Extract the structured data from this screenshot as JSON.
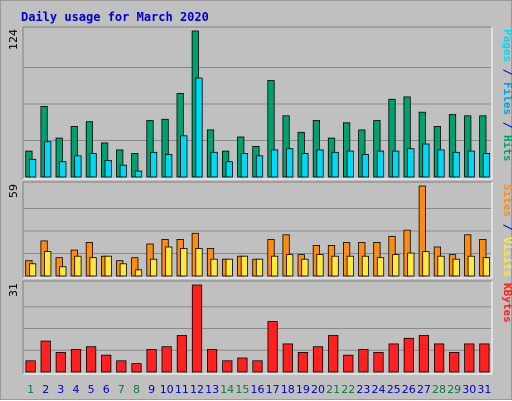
{
  "chart_data": {
    "type": "bar",
    "title": "Daily usage for March 2020",
    "categories": [
      "1",
      "2",
      "3",
      "4",
      "5",
      "6",
      "7",
      "8",
      "9",
      "10",
      "11",
      "12",
      "13",
      "14",
      "15",
      "16",
      "17",
      "18",
      "19",
      "20",
      "21",
      "22",
      "23",
      "24",
      "25",
      "26",
      "27",
      "28",
      "29",
      "30",
      "31"
    ],
    "weekend_days": [
      "1",
      "7",
      "8",
      "14",
      "15",
      "21",
      "22",
      "28",
      "29"
    ],
    "colors": {
      "weekday_label": "#0000cc",
      "weekend_label": "#0a7a3c",
      "hits": "#00a070",
      "files": "#00d8f8",
      "pages": "#00d8f8",
      "visits": "#ff8c10",
      "sites": "#ffe840",
      "kbytes": "#ff2020",
      "grid": "#8a8a8a"
    },
    "panels": [
      {
        "id": "hits",
        "ymax_label": "124",
        "ylim": [
          0,
          124
        ],
        "legend": [
          {
            "text": "Pages",
            "color": "#00d8f8"
          },
          {
            "text": " / ",
            "color": "#0000cc"
          },
          {
            "text": "Files",
            "color": "#00a0d8"
          },
          {
            "text": " / ",
            "color": "#0000cc"
          },
          {
            "text": "Hits",
            "color": "#00a070"
          }
        ],
        "series": [
          {
            "name": "Hits",
            "color": "#00a070",
            "values": [
              22,
              60,
              33,
              43,
              47,
              29,
              23,
              20,
              48,
              49,
              71,
              124,
              40,
              22,
              34,
              26,
              82,
              52,
              38,
              48,
              33,
              46,
              40,
              48,
              66,
              68,
              55,
              43,
              53,
              52,
              52
            ]
          },
          {
            "name": "Files",
            "color": "#00d8f8",
            "values": [
              15,
              30,
              13,
              18,
              20,
              14,
              10,
              5,
              21,
              19,
              35,
              84,
              21,
              13,
              20,
              18,
              23,
              24,
              20,
              23,
              21,
              22,
              19,
              22,
              22,
              24,
              28,
              23,
              21,
              22,
              20
            ]
          },
          {
            "name": "Pages",
            "color": "#00d8f8",
            "values": [
              0,
              0,
              0,
              0,
              0,
              0,
              0,
              0,
              0,
              0,
              0,
              0,
              0,
              0,
              0,
              0,
              0,
              0,
              0,
              0,
              0,
              0,
              0,
              0,
              0,
              0,
              0,
              0,
              0,
              0,
              0
            ]
          }
        ]
      },
      {
        "id": "visits",
        "ymax_label": "59",
        "ylim": [
          0,
          59
        ],
        "legend": [
          {
            "text": "Sites",
            "color": "#ff8c10"
          },
          {
            "text": " / ",
            "color": "#0000cc"
          },
          {
            "text": "Visits",
            "color": "#ffe840"
          }
        ],
        "series": [
          {
            "name": "Visits",
            "color": "#ff8c10",
            "values": [
              10,
              23,
              12,
              17,
              22,
              13,
              10,
              12,
              21,
              24,
              24,
              28,
              18,
              11,
              13,
              11,
              24,
              27,
              14,
              20,
              20,
              22,
              22,
              22,
              26,
              30,
              59,
              19,
              14,
              27,
              24
            ]
          },
          {
            "name": "Sites",
            "color": "#ffe840",
            "values": [
              8,
              16,
              6,
              13,
              12,
              13,
              8,
              4,
              11,
              19,
              18,
              18,
              11,
              11,
              13,
              11,
              13,
              14,
              11,
              14,
              13,
              13,
              13,
              12,
              14,
              15,
              16,
              13,
              11,
              13,
              12
            ]
          }
        ]
      },
      {
        "id": "kbytes",
        "ymax_label": "31",
        "ylim": [
          0,
          31
        ],
        "legend": [
          {
            "text": "KBytes",
            "color": "#ff2020"
          }
        ],
        "series": [
          {
            "name": "KBytes",
            "color": "#ff2020",
            "values": [
              4,
              11,
              7,
              8,
              9,
              6,
              4,
              3,
              8,
              9,
              13,
              31,
              8,
              4,
              5,
              4,
              18,
              10,
              7,
              9,
              13,
              6,
              8,
              7,
              10,
              12,
              13,
              10,
              7,
              10,
              10
            ]
          }
        ]
      }
    ]
  }
}
